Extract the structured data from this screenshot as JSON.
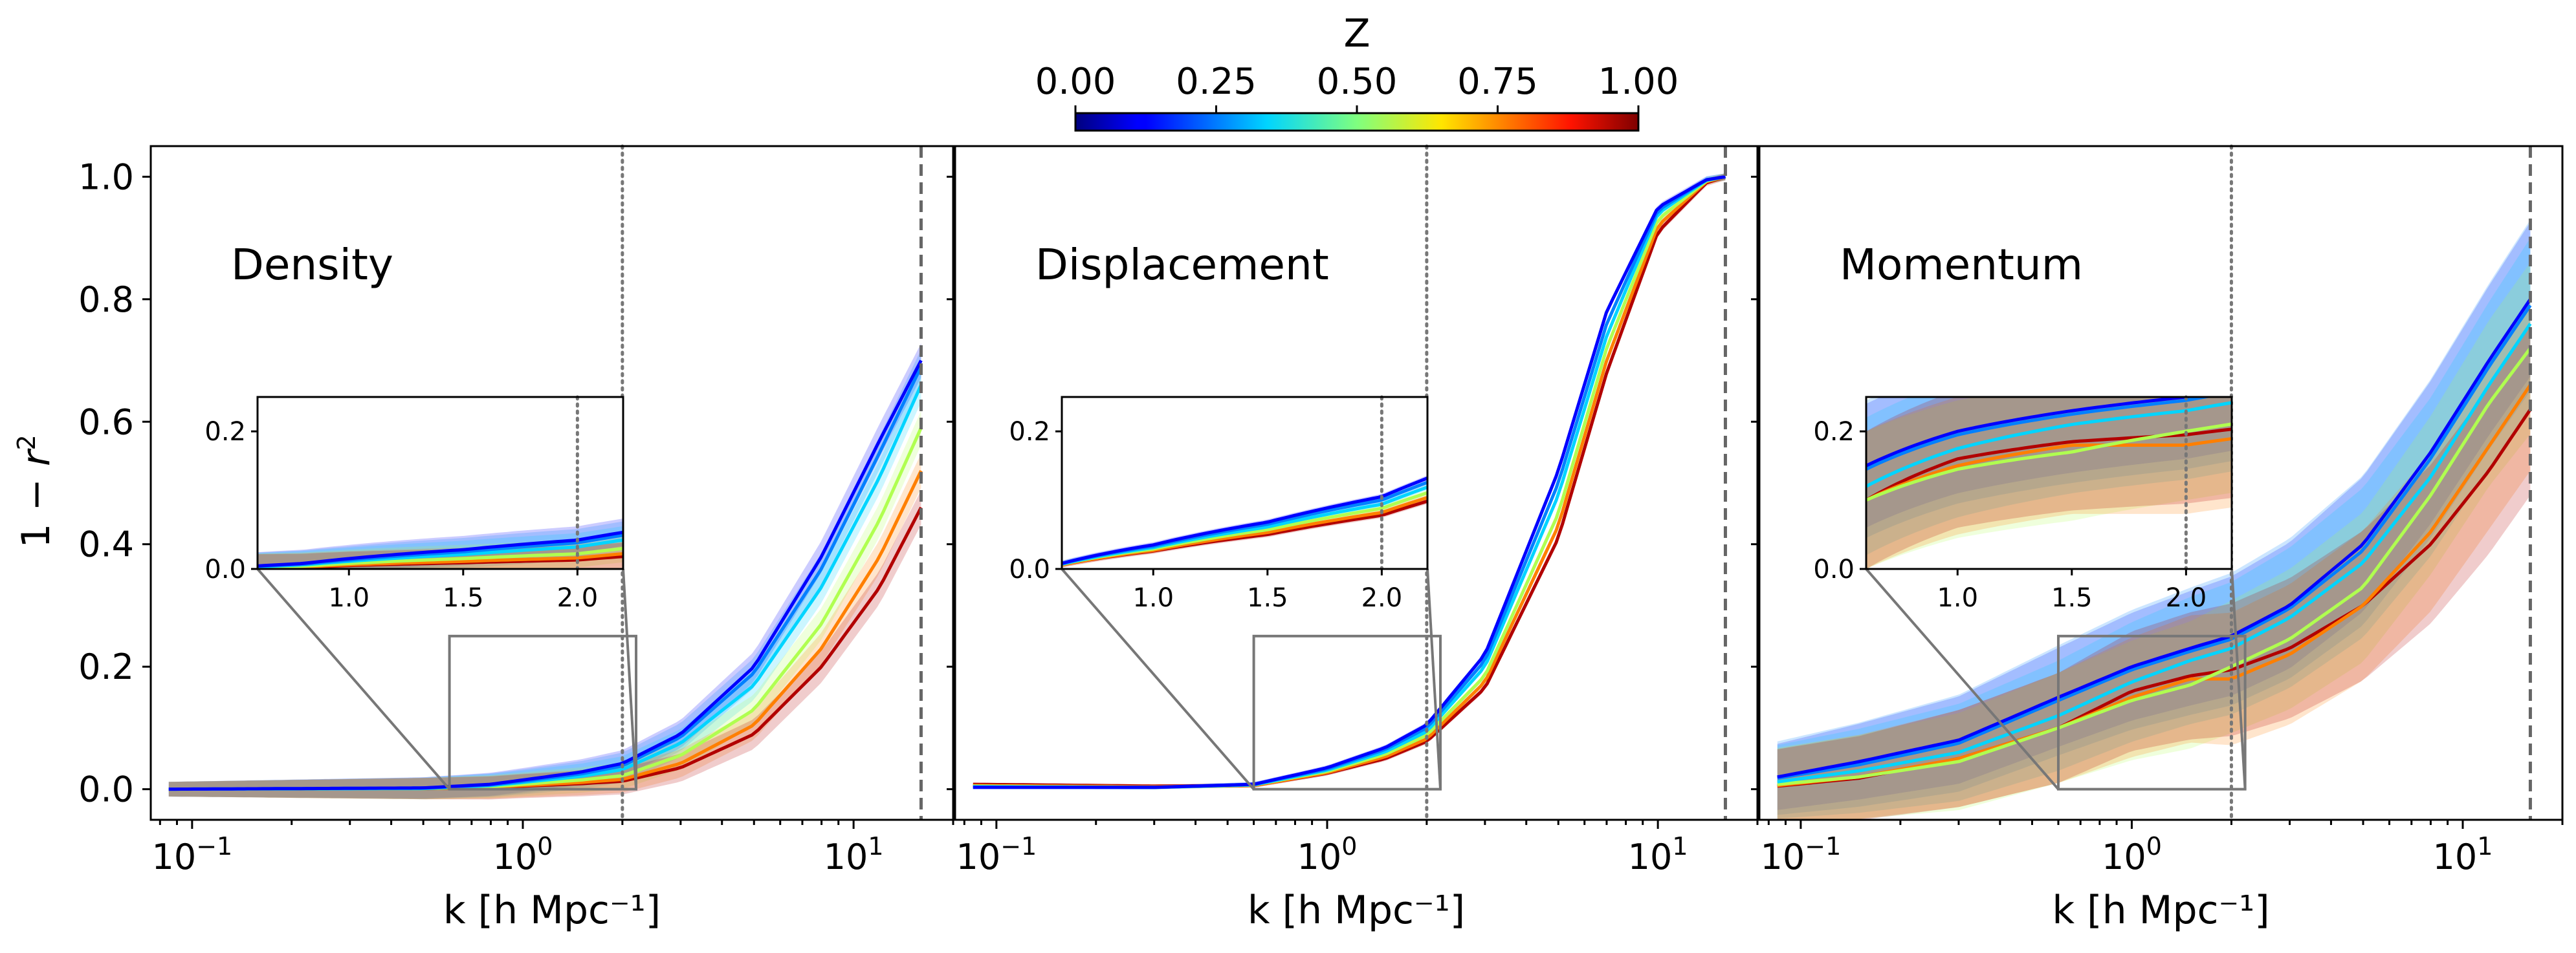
{
  "chart_data": {
    "type": "line",
    "shared": {
      "ylabel": "1 − r²",
      "xlabel": "k [h Mpc⁻¹]",
      "x_scale": "log",
      "xlim": [
        0.075,
        20
      ],
      "ylim": [
        -0.05,
        1.05
      ],
      "y_ticks": [
        "0.0",
        "0.2",
        "0.4",
        "0.6",
        "0.8",
        "1.0"
      ],
      "x_ticks": [
        {
          "value": 0.1,
          "base": "10",
          "exp": "−1"
        },
        {
          "value": 1,
          "base": "10",
          "exp": "0"
        },
        {
          "value": 10,
          "base": "10",
          "exp": "1"
        }
      ],
      "vline_dotted_k": 2.0,
      "vline_dashed_k": 16.0,
      "colorbar": {
        "label": "Z",
        "colormap": "jet",
        "range": [
          0,
          1
        ],
        "ticks": [
          "0.00",
          "0.25",
          "0.50",
          "0.75",
          "1.00"
        ]
      },
      "inset": {
        "xlim": [
          0.6,
          2.2
        ],
        "ylim": [
          0,
          0.25
        ],
        "x_ticks": [
          "1.0",
          "1.5",
          "2.0"
        ],
        "y_ticks": [
          "0.0",
          "0.2"
        ]
      },
      "series_colors": [
        "#0000ff",
        "#0080ff",
        "#00d4ff",
        "#b0ff50",
        "#ff7f00",
        "#b20000"
      ]
    },
    "panels": [
      {
        "title": "Density",
        "series": [
          {
            "z": 0.0,
            "color": "#0000ff",
            "x": [
              0.085,
              0.5,
              0.8,
              1.0,
              1.5,
              2.0,
              3.0,
              5.0,
              8.0,
              12.0,
              16.0
            ],
            "y": [
              0.0,
              0.002,
              0.008,
              0.015,
              0.028,
              0.042,
              0.09,
              0.2,
              0.38,
              0.57,
              0.7
            ],
            "band": 0.02
          },
          {
            "z": 0.2,
            "color": "#0080ff",
            "x": [
              0.085,
              0.5,
              0.8,
              1.0,
              1.5,
              2.0,
              3.0,
              5.0,
              8.0,
              12.0,
              16.0
            ],
            "y": [
              0.0,
              0.002,
              0.007,
              0.013,
              0.025,
              0.038,
              0.085,
              0.19,
              0.36,
              0.55,
              0.69
            ],
            "band": 0.02
          },
          {
            "z": 0.4,
            "color": "#00d4ff",
            "x": [
              0.085,
              0.5,
              0.8,
              1.0,
              1.5,
              2.0,
              3.0,
              5.0,
              8.0,
              12.0,
              16.0
            ],
            "y": [
              0.0,
              0.001,
              0.006,
              0.011,
              0.021,
              0.032,
              0.075,
              0.17,
              0.33,
              0.51,
              0.66
            ],
            "band": 0.02
          },
          {
            "z": 0.6,
            "color": "#b0ff50",
            "x": [
              0.085,
              0.5,
              0.8,
              1.0,
              1.5,
              2.0,
              3.0,
              5.0,
              8.0,
              12.0,
              16.0
            ],
            "y": [
              0.0,
              0.001,
              0.004,
              0.008,
              0.015,
              0.022,
              0.055,
              0.13,
              0.27,
              0.44,
              0.59
            ],
            "band": 0.02
          },
          {
            "z": 0.8,
            "color": "#ff7f00",
            "x": [
              0.085,
              0.5,
              0.8,
              1.0,
              1.5,
              2.0,
              3.0,
              5.0,
              8.0,
              12.0,
              16.0
            ],
            "y": [
              0.0,
              0.001,
              0.003,
              0.006,
              0.011,
              0.016,
              0.042,
              0.105,
              0.23,
              0.38,
              0.52
            ],
            "band": 0.02
          },
          {
            "z": 1.0,
            "color": "#b20000",
            "x": [
              0.085,
              0.5,
              0.8,
              1.0,
              1.5,
              2.0,
              3.0,
              5.0,
              8.0,
              12.0,
              16.0
            ],
            "y": [
              0.0,
              0.001,
              0.002,
              0.005,
              0.009,
              0.013,
              0.035,
              0.09,
              0.2,
              0.33,
              0.46
            ],
            "band": 0.02
          }
        ]
      },
      {
        "title": "Displacement",
        "series": [
          {
            "z": 0.0,
            "color": "#0000ff",
            "x": [
              0.085,
              0.3,
              0.6,
              1.0,
              1.5,
              2.0,
              3.0,
              5.0,
              7.0,
              10.0,
              14.0,
              16.0
            ],
            "y": [
              0.003,
              0.003,
              0.008,
              0.035,
              0.068,
              0.105,
              0.22,
              0.52,
              0.78,
              0.95,
              0.995,
              1.0
            ],
            "band": 0.004
          },
          {
            "z": 0.2,
            "color": "#0080ff",
            "x": [
              0.085,
              0.3,
              0.6,
              1.0,
              1.5,
              2.0,
              3.0,
              5.0,
              7.0,
              10.0,
              14.0,
              16.0
            ],
            "y": [
              0.003,
              0.003,
              0.008,
              0.033,
              0.065,
              0.1,
              0.21,
              0.5,
              0.76,
              0.945,
              0.995,
              1.0
            ],
            "band": 0.004
          },
          {
            "z": 0.4,
            "color": "#00d4ff",
            "x": [
              0.085,
              0.3,
              0.6,
              1.0,
              1.5,
              2.0,
              3.0,
              5.0,
              7.0,
              10.0,
              14.0,
              16.0
            ],
            "y": [
              0.004,
              0.003,
              0.007,
              0.031,
              0.061,
              0.094,
              0.2,
              0.48,
              0.74,
              0.94,
              0.994,
              1.0
            ],
            "band": 0.004
          },
          {
            "z": 0.6,
            "color": "#b0ff50",
            "x": [
              0.085,
              0.3,
              0.6,
              1.0,
              1.5,
              2.0,
              3.0,
              5.0,
              7.0,
              10.0,
              14.0,
              16.0
            ],
            "y": [
              0.005,
              0.003,
              0.007,
              0.029,
              0.057,
              0.088,
              0.185,
              0.45,
              0.72,
              0.93,
              0.993,
              1.0
            ],
            "band": 0.004
          },
          {
            "z": 0.8,
            "color": "#ff7f00",
            "x": [
              0.085,
              0.3,
              0.6,
              1.0,
              1.5,
              2.0,
              3.0,
              5.0,
              7.0,
              10.0,
              14.0,
              16.0
            ],
            "y": [
              0.006,
              0.004,
              0.006,
              0.027,
              0.053,
              0.082,
              0.175,
              0.43,
              0.7,
              0.92,
              0.992,
              1.0
            ],
            "band": 0.004
          },
          {
            "z": 1.0,
            "color": "#b20000",
            "x": [
              0.085,
              0.3,
              0.6,
              1.0,
              1.5,
              2.0,
              3.0,
              5.0,
              7.0,
              10.0,
              14.0,
              16.0
            ],
            "y": [
              0.008,
              0.005,
              0.006,
              0.026,
              0.05,
              0.078,
              0.165,
              0.41,
              0.68,
              0.91,
              0.99,
              1.0
            ],
            "band": 0.004
          }
        ]
      },
      {
        "title": "Momentum",
        "series": [
          {
            "z": 0.0,
            "color": "#0000ff",
            "x": [
              0.085,
              0.15,
              0.3,
              0.6,
              1.0,
              1.5,
              2.0,
              3.0,
              5.0,
              8.0,
              12.0,
              16.0
            ],
            "y": [
              0.02,
              0.045,
              0.08,
              0.15,
              0.2,
              0.23,
              0.25,
              0.3,
              0.4,
              0.55,
              0.7,
              0.8
            ],
            "band": 0.09
          },
          {
            "z": 0.2,
            "color": "#0080ff",
            "x": [
              0.085,
              0.15,
              0.3,
              0.6,
              1.0,
              1.5,
              2.0,
              3.0,
              5.0,
              8.0,
              12.0,
              16.0
            ],
            "y": [
              0.018,
              0.04,
              0.075,
              0.145,
              0.195,
              0.225,
              0.245,
              0.295,
              0.39,
              0.54,
              0.69,
              0.79
            ],
            "band": 0.1
          },
          {
            "z": 0.4,
            "color": "#00d4ff",
            "x": [
              0.085,
              0.15,
              0.3,
              0.6,
              1.0,
              1.5,
              2.0,
              3.0,
              5.0,
              8.0,
              12.0,
              16.0
            ],
            "y": [
              0.012,
              0.03,
              0.06,
              0.12,
              0.175,
              0.21,
              0.23,
              0.28,
              0.37,
              0.51,
              0.66,
              0.76
            ],
            "band": 0.1
          },
          {
            "z": 0.6,
            "color": "#b0ff50",
            "x": [
              0.085,
              0.15,
              0.3,
              0.6,
              1.0,
              1.5,
              2.0,
              3.0,
              5.0,
              8.0,
              12.0,
              16.0
            ],
            "y": [
              0.008,
              0.02,
              0.045,
              0.1,
              0.145,
              0.17,
              0.2,
              0.245,
              0.33,
              0.48,
              0.63,
              0.72
            ],
            "band": 0.1
          },
          {
            "z": 0.8,
            "color": "#ff7f00",
            "x": [
              0.085,
              0.15,
              0.3,
              0.6,
              1.0,
              1.5,
              2.0,
              3.0,
              5.0,
              8.0,
              12.0,
              16.0
            ],
            "y": [
              0.006,
              0.02,
              0.05,
              0.1,
              0.15,
              0.18,
              0.18,
              0.22,
              0.3,
              0.42,
              0.56,
              0.66
            ],
            "band": 0.1
          },
          {
            "z": 1.0,
            "color": "#b20000",
            "x": [
              0.085,
              0.15,
              0.3,
              0.6,
              1.0,
              1.5,
              2.0,
              3.0,
              5.0,
              8.0,
              12.0,
              16.0
            ],
            "y": [
              0.005,
              0.018,
              0.05,
              0.1,
              0.16,
              0.185,
              0.195,
              0.23,
              0.3,
              0.4,
              0.52,
              0.62
            ],
            "band": 0.1
          }
        ]
      }
    ]
  }
}
